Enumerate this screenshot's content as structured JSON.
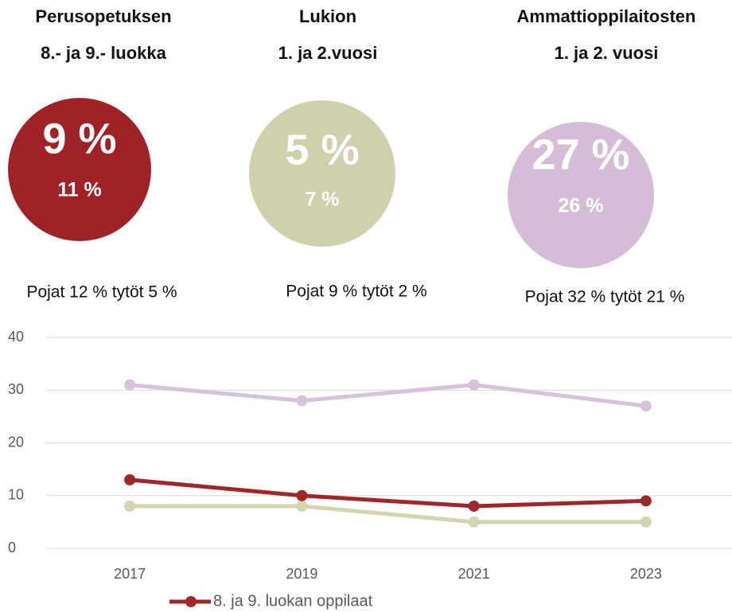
{
  "panels": [
    {
      "title": [
        "Perusopetuksen",
        "8.- ja 9.- luokka"
      ],
      "main": "9 %",
      "sub": "11 %",
      "caption": "Pojat 12 % tytöt 5 %",
      "color": "#9e2226"
    },
    {
      "title": [
        "Lukion",
        "1. ja 2.vuosi"
      ],
      "main": "5 %",
      "sub": "7 %",
      "caption": "Pojat 9 % tytöt 2 %",
      "color": "#cfd1ac"
    },
    {
      "title": [
        "Ammattioppilaitosten",
        "1. ja 2. vuosi"
      ],
      "main": "27 %",
      "sub": "26 %",
      "caption": "Pojat 32 % tytöt 21 %",
      "color": "#d5bdd8"
    }
  ],
  "chart_data": {
    "type": "line",
    "categories": [
      "2017",
      "2019",
      "2021",
      "2023"
    ],
    "series": [
      {
        "name": "8. ja 9. luokan oppilaat",
        "color": "#a0262a",
        "values": [
          13,
          10,
          8,
          9
        ]
      },
      {
        "color": "#d4d4ae",
        "values": [
          8,
          8,
          5,
          5
        ]
      },
      {
        "color": "#d8c1db",
        "values": [
          31,
          28,
          31,
          27
        ]
      }
    ],
    "ylim": [
      0,
      40
    ],
    "yticks": [
      0,
      10,
      20,
      30,
      40
    ],
    "grid": true
  }
}
